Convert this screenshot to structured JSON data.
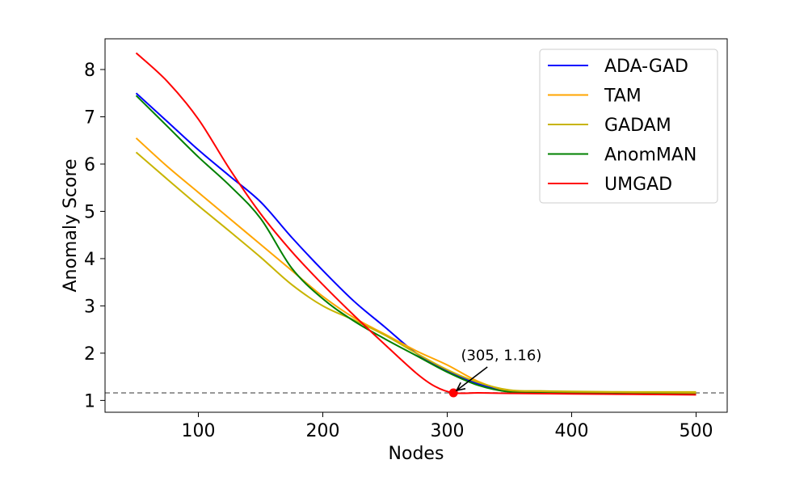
{
  "chart_data": {
    "type": "line",
    "xlabel": "Nodes",
    "ylabel": "Anomaly Score",
    "xlim": [
      25,
      525
    ],
    "ylim": [
      0.75,
      8.65
    ],
    "xticks": [
      100,
      200,
      300,
      400,
      500
    ],
    "yticks": [
      1,
      2,
      3,
      4,
      5,
      6,
      7,
      8
    ],
    "grid": false,
    "legend_position": "top-right",
    "reference_line": {
      "y": 1.16,
      "style": "dashed",
      "color": "#808080"
    },
    "annotation": {
      "text": "(305, 1.16)",
      "x": 305,
      "y": 1.16,
      "text_x": 311,
      "text_y": 1.85
    },
    "series": [
      {
        "name": "ADA-GAD",
        "color": "#0000ff",
        "x": [
          50,
          75,
          100,
          125,
          150,
          175,
          200,
          225,
          250,
          275,
          300,
          325,
          350,
          375,
          400,
          450,
          500
        ],
        "y": [
          7.5,
          6.9,
          6.3,
          5.75,
          5.2,
          4.45,
          3.75,
          3.1,
          2.55,
          2.0,
          1.62,
          1.35,
          1.19,
          1.17,
          1.16,
          1.15,
          1.14
        ]
      },
      {
        "name": "TAM",
        "color": "#ffa500",
        "x": [
          50,
          75,
          100,
          125,
          150,
          175,
          200,
          225,
          250,
          275,
          300,
          325,
          350,
          375,
          400,
          450,
          500
        ],
        "y": [
          6.55,
          5.95,
          5.4,
          4.85,
          4.3,
          3.75,
          3.2,
          2.75,
          2.4,
          2.05,
          1.75,
          1.4,
          1.2,
          1.18,
          1.17,
          1.16,
          1.16
        ]
      },
      {
        "name": "GADAM",
        "color": "#c8b400",
        "x": [
          50,
          75,
          100,
          125,
          150,
          175,
          200,
          225,
          250,
          275,
          300,
          325,
          350,
          375,
          400,
          450,
          500
        ],
        "y": [
          6.25,
          5.68,
          5.12,
          4.58,
          4.03,
          3.45,
          3.0,
          2.7,
          2.38,
          2.0,
          1.65,
          1.38,
          1.22,
          1.2,
          1.19,
          1.18,
          1.18
        ]
      },
      {
        "name": "AnomMAN",
        "color": "#008000",
        "x": [
          50,
          75,
          100,
          125,
          150,
          175,
          200,
          225,
          250,
          275,
          300,
          325,
          350,
          375,
          400,
          450,
          500
        ],
        "y": [
          7.45,
          6.8,
          6.15,
          5.55,
          4.85,
          3.8,
          3.15,
          2.68,
          2.3,
          1.95,
          1.6,
          1.32,
          1.18,
          1.16,
          1.15,
          1.14,
          1.13
        ]
      },
      {
        "name": "UMGAD",
        "color": "#ff0000",
        "x": [
          50,
          75,
          100,
          125,
          150,
          175,
          200,
          225,
          250,
          275,
          290,
          305,
          325,
          350,
          400,
          450,
          500
        ],
        "y": [
          8.35,
          7.75,
          6.95,
          5.9,
          4.95,
          4.15,
          3.45,
          2.8,
          2.18,
          1.58,
          1.3,
          1.16,
          1.16,
          1.15,
          1.14,
          1.13,
          1.12
        ]
      }
    ]
  }
}
